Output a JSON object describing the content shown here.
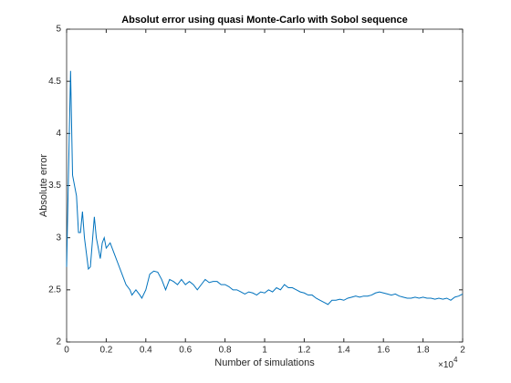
{
  "chart_data": {
    "type": "line",
    "title": "Absolut error using quasi Monte-Carlo with Sobol sequence",
    "xlabel": "Number of simulations",
    "ylabel": "Absolute error",
    "x_scale_label": {
      "base": "×10",
      "exponent": "4"
    },
    "color": "#0072bd",
    "xlim": [
      0,
      20000
    ],
    "ylim": [
      2,
      5
    ],
    "xticks": [
      {
        "value": 0,
        "label": "0"
      },
      {
        "value": 2000,
        "label": "0.2"
      },
      {
        "value": 4000,
        "label": "0.4"
      },
      {
        "value": 6000,
        "label": "0.6"
      },
      {
        "value": 8000,
        "label": "0.8"
      },
      {
        "value": 10000,
        "label": "1"
      },
      {
        "value": 12000,
        "label": "1.2"
      },
      {
        "value": 14000,
        "label": "1.4"
      },
      {
        "value": 16000,
        "label": "1.6"
      },
      {
        "value": 18000,
        "label": "1.8"
      },
      {
        "value": 20000,
        "label": "2"
      }
    ],
    "yticks": [
      2,
      2.5,
      3,
      3.5,
      4,
      4.5,
      5
    ],
    "x": [
      0,
      200,
      300,
      500,
      600,
      700,
      800,
      900,
      1000,
      1100,
      1200,
      1400,
      1500,
      1600,
      1700,
      1800,
      1900,
      2000,
      2200,
      2400,
      2600,
      2800,
      3000,
      3200,
      3300,
      3500,
      3700,
      3800,
      4000,
      4200,
      4400,
      4600,
      4800,
      5000,
      5200,
      5400,
      5600,
      5800,
      6000,
      6200,
      6400,
      6600,
      6800,
      7000,
      7200,
      7400,
      7600,
      7800,
      8000,
      8200,
      8400,
      8600,
      8800,
      9000,
      9200,
      9400,
      9600,
      9800,
      10000,
      10200,
      10400,
      10600,
      10800,
      11000,
      11200,
      11400,
      11600,
      11800,
      12000,
      12200,
      12400,
      12600,
      12800,
      13000,
      13200,
      13400,
      13600,
      13800,
      14000,
      14200,
      14400,
      14600,
      14800,
      15000,
      15200,
      15400,
      15600,
      15800,
      16000,
      16200,
      16400,
      16600,
      16800,
      17000,
      17200,
      17400,
      17600,
      17800,
      18000,
      18200,
      18400,
      18600,
      18800,
      19000,
      19200,
      19400,
      19600,
      19800,
      20000
    ],
    "values": [
      2.72,
      4.6,
      3.6,
      3.4,
      3.05,
      3.05,
      3.25,
      3.0,
      2.85,
      2.7,
      2.72,
      3.2,
      3.0,
      2.9,
      2.8,
      2.95,
      3.0,
      2.9,
      2.95,
      2.85,
      2.75,
      2.65,
      2.55,
      2.5,
      2.45,
      2.5,
      2.45,
      2.42,
      2.5,
      2.65,
      2.68,
      2.67,
      2.6,
      2.5,
      2.6,
      2.58,
      2.55,
      2.6,
      2.55,
      2.58,
      2.55,
      2.5,
      2.55,
      2.6,
      2.57,
      2.58,
      2.58,
      2.55,
      2.55,
      2.53,
      2.5,
      2.5,
      2.48,
      2.46,
      2.48,
      2.47,
      2.45,
      2.48,
      2.47,
      2.5,
      2.48,
      2.52,
      2.5,
      2.55,
      2.52,
      2.52,
      2.5,
      2.48,
      2.47,
      2.45,
      2.45,
      2.42,
      2.4,
      2.38,
      2.36,
      2.4,
      2.4,
      2.41,
      2.4,
      2.42,
      2.43,
      2.44,
      2.43,
      2.44,
      2.44,
      2.45,
      2.47,
      2.48,
      2.47,
      2.46,
      2.45,
      2.46,
      2.44,
      2.43,
      2.42,
      2.42,
      2.43,
      2.42,
      2.43,
      2.42,
      2.42,
      2.41,
      2.42,
      2.41,
      2.42,
      2.4,
      2.43,
      2.44,
      2.46
    ]
  }
}
